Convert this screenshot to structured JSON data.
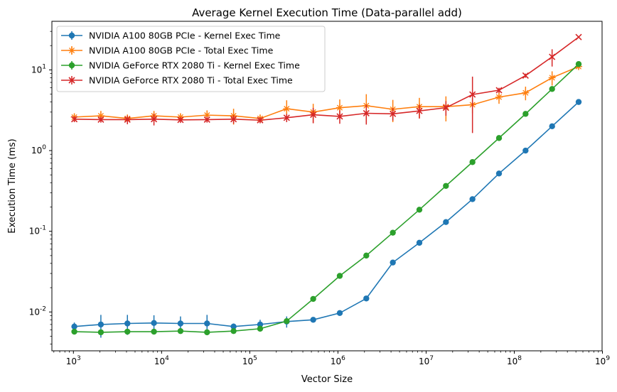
{
  "chart_data": {
    "type": "line",
    "title": "Average Kernel Execution Time (Data-parallel add)",
    "xlabel": "Vector Size",
    "ylabel": "Execution Time (ms)",
    "xscale": "log",
    "yscale": "log",
    "xlim": [
      570,
      990000000
    ],
    "ylim": [
      0.0033,
      40
    ],
    "legend_position": "top-left",
    "grid": false,
    "x_ticks": [
      {
        "value": 1000,
        "label": "10^3"
      },
      {
        "value": 10000,
        "label": "10^4"
      },
      {
        "value": 100000,
        "label": "10^5"
      },
      {
        "value": 1000000,
        "label": "10^6"
      },
      {
        "value": 10000000,
        "label": "10^7"
      },
      {
        "value": 100000000,
        "label": "10^8"
      },
      {
        "value": 1000000000,
        "label": "10^9"
      }
    ],
    "y_ticks": [
      {
        "value": 0.01,
        "label": "10^-2"
      },
      {
        "value": 0.1,
        "label": "10^-1"
      },
      {
        "value": 1,
        "label": "10^0"
      },
      {
        "value": 10,
        "label": "10^1"
      }
    ],
    "x": [
      1024,
      2048,
      4096,
      8192,
      16384,
      32768,
      65536,
      131072,
      262144,
      524288,
      1048576,
      2097152,
      4194304,
      8388608,
      16777216,
      33554432,
      67108864,
      134217728,
      268435456,
      536870912
    ],
    "series": [
      {
        "name": "NVIDIA A100 80GB PCIe - Kernel Exec Time",
        "color": "#1f77b4",
        "marker": "circle",
        "values": [
          0.0066,
          0.007,
          0.0072,
          0.0073,
          0.0072,
          0.0072,
          0.0066,
          0.007,
          0.0076,
          0.008,
          0.0097,
          0.0147,
          0.041,
          0.072,
          0.13,
          0.25,
          0.52,
          1.0,
          2.0,
          4.0
        ],
        "errors": [
          0.0008,
          0.0022,
          0.002,
          0.0018,
          0.0016,
          0.002,
          0.0006,
          0.001,
          0.0012,
          0,
          0,
          0,
          0,
          0,
          0,
          0,
          0,
          0,
          0,
          0
        ]
      },
      {
        "name": "NVIDIA A100 80GB PCIe - Total Exec Time",
        "color": "#ff7f0e",
        "marker": "star",
        "values": [
          2.6,
          2.7,
          2.5,
          2.7,
          2.6,
          2.75,
          2.7,
          2.5,
          3.3,
          3.0,
          3.4,
          3.6,
          3.25,
          3.5,
          3.5,
          3.7,
          4.6,
          5.2,
          8.0,
          11.0
        ],
        "errors": [
          0.3,
          0.4,
          0.3,
          0.4,
          0.3,
          0.4,
          0.6,
          0.3,
          0.9,
          0.8,
          0.9,
          1.4,
          1.0,
          1.0,
          1.2,
          0.8,
          0.8,
          1.0,
          1.6,
          0.9
        ]
      },
      {
        "name": "NVIDIA GeForce RTX 2080 Ti - Kernel Exec Time",
        "color": "#2ca02c",
        "marker": "circle",
        "values": [
          0.0057,
          0.0056,
          0.0057,
          0.0057,
          0.0058,
          0.0056,
          0.0058,
          0.0062,
          0.0077,
          0.0145,
          0.028,
          0.05,
          0.096,
          0.185,
          0.365,
          0.72,
          1.43,
          2.85,
          5.8,
          11.8
        ],
        "errors": [
          0.0003,
          0.0003,
          0.0003,
          0.0003,
          0.0003,
          0.0003,
          0.0004,
          0.0003,
          0.0003,
          0,
          0,
          0,
          0,
          0,
          0,
          0,
          0,
          0,
          0,
          0
        ]
      },
      {
        "name": "NVIDIA GeForce RTX 2080 Ti - Total Exec Time",
        "color": "#d62728",
        "marker": "x",
        "values": [
          2.45,
          2.42,
          2.42,
          2.45,
          2.4,
          2.42,
          2.45,
          2.38,
          2.55,
          2.78,
          2.65,
          2.9,
          2.85,
          3.1,
          3.4,
          4.95,
          5.6,
          8.5,
          14.5,
          25.5
        ],
        "errors": [
          0.2,
          0.2,
          0.3,
          0.4,
          0.2,
          0.2,
          0.3,
          0.2,
          0.3,
          0.6,
          0.5,
          0.8,
          0.5,
          0.6,
          0.7,
          3.3,
          0.4,
          0.5,
          3.5,
          0.5
        ]
      }
    ]
  }
}
